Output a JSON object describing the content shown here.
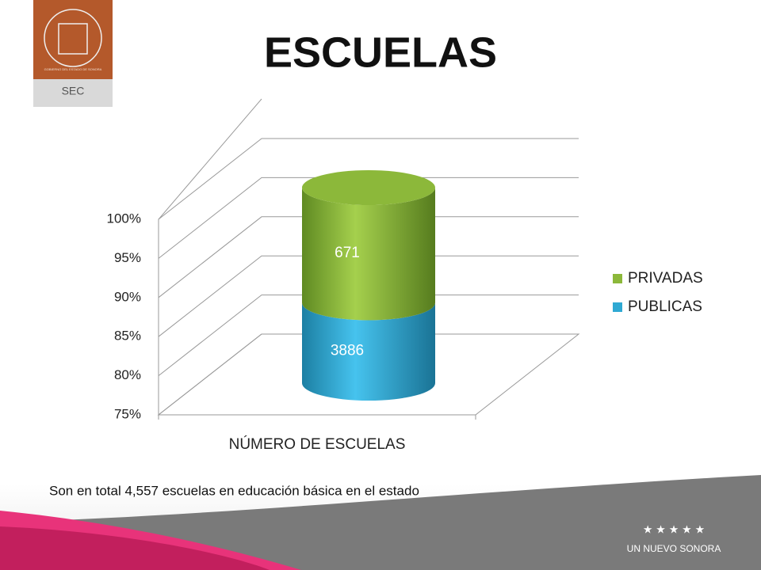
{
  "branding": {
    "logo": "SEC",
    "seal": "GOBIERNO DEL ESTADO DE SONORA",
    "footer": "UN NUEVO SONORA"
  },
  "chart_data": {
    "type": "bar",
    "stacking": "percent",
    "title": "ESCUELAS",
    "categories": [
      "NÚMERO DE ESCUELAS"
    ],
    "series": [
      {
        "name": "PUBLICAS",
        "color": "#2fa9d3",
        "values": [
          3886
        ]
      },
      {
        "name": "PRIVADAS",
        "color": "#8cb83a",
        "values": [
          671
        ]
      }
    ],
    "ylim": [
      75,
      100
    ],
    "yticks": [
      {
        "value": 75,
        "label": "75%"
      },
      {
        "value": 80,
        "label": "80%"
      },
      {
        "value": 85,
        "label": "85%"
      },
      {
        "value": 90,
        "label": "90%"
      },
      {
        "value": 95,
        "label": "95%"
      },
      {
        "value": 100,
        "label": "100%"
      }
    ],
    "grid": true,
    "legend": "right",
    "annotations": [
      "Son en total 4,557 escuelas en educación básica en el estado"
    ]
  }
}
